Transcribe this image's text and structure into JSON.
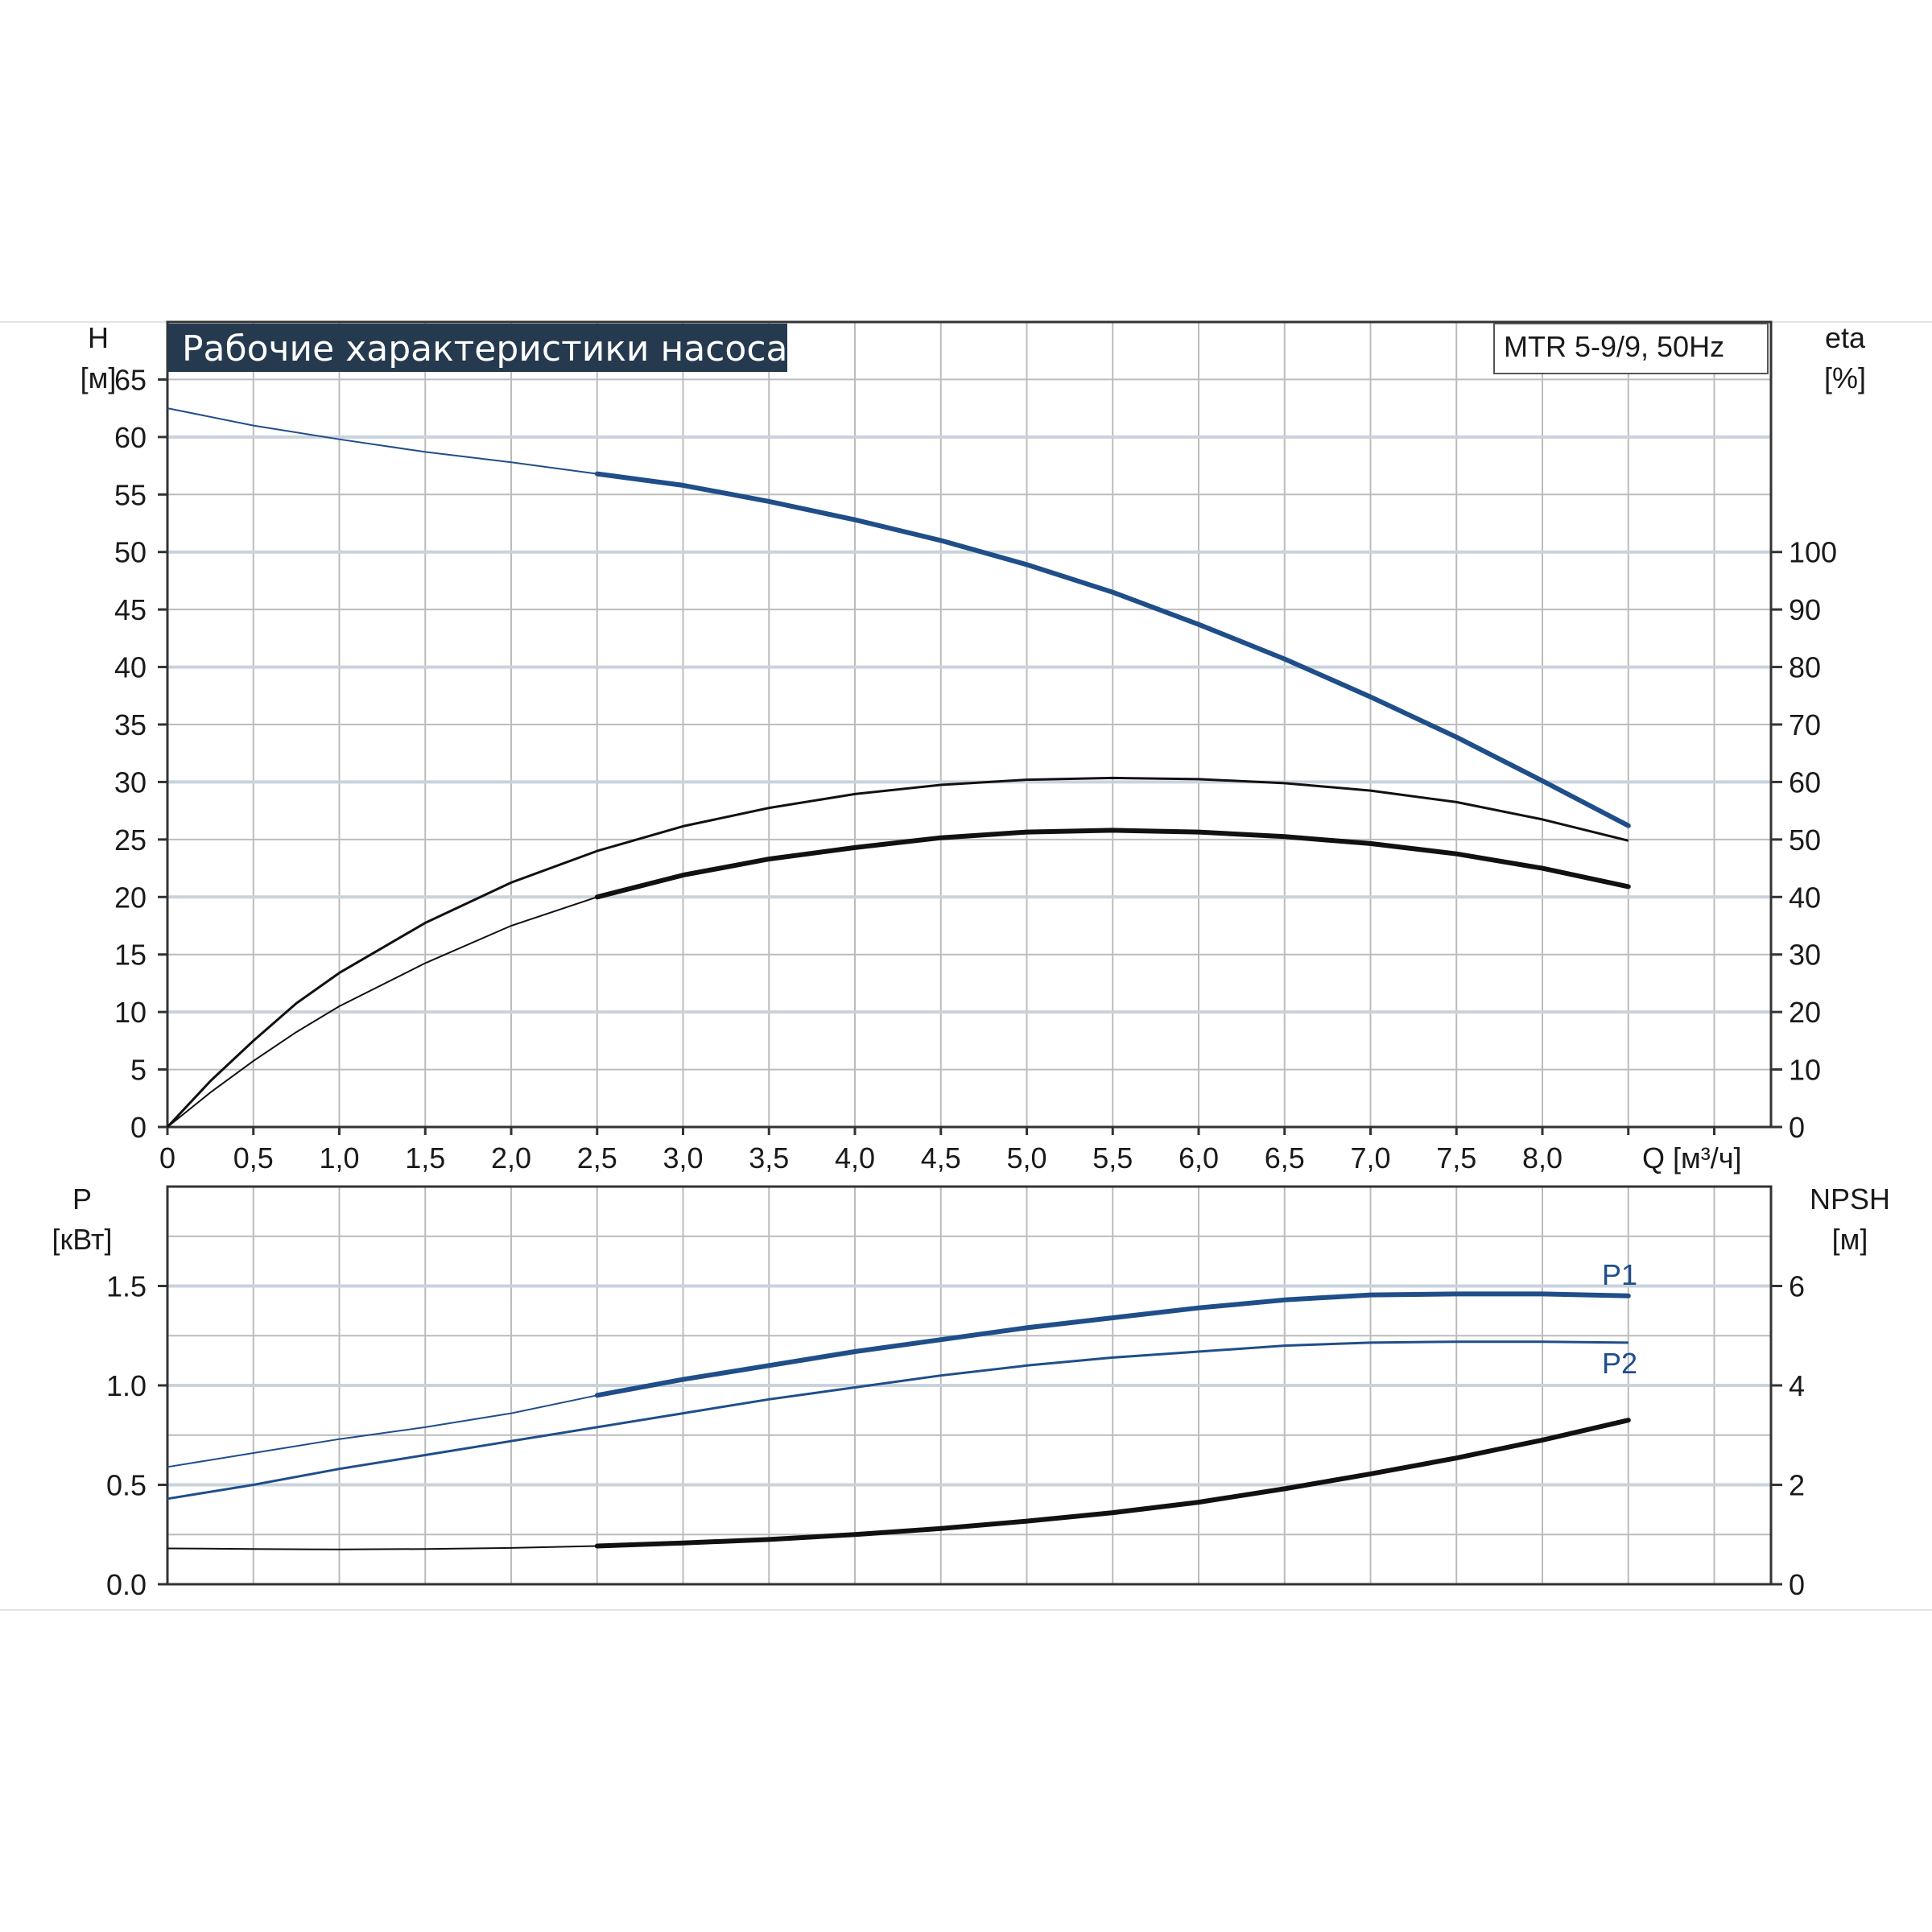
{
  "colors": {
    "blue": "#1f4e89",
    "black": "#111111",
    "title_bg": "#263a4f",
    "grid": "#bcbcbc"
  },
  "title": "Рабочие характеристики насоса",
  "model": "MTR 5-9/9, 50Hz",
  "chart_data": [
    {
      "type": "line",
      "x_axis": {
        "label": "Q [м³/ч]",
        "range": [
          0,
          9.3
        ],
        "ticks": [
          "0",
          "0,5",
          "1,0",
          "1,5",
          "2,0",
          "2,5",
          "3,0",
          "3,5",
          "4,0",
          "4,5",
          "5,0",
          "5,5",
          "6,0",
          "6,5",
          "7,0",
          "7,5",
          "8,0"
        ]
      },
      "y_left": {
        "label_top": "H",
        "label_unit": "[м]",
        "range": [
          0,
          70
        ],
        "ticks": [
          "0",
          "5",
          "10",
          "15",
          "20",
          "25",
          "30",
          "35",
          "40",
          "45",
          "50",
          "55",
          "60",
          "65"
        ]
      },
      "y_right": {
        "label_top": "eta",
        "label_unit": "[%]",
        "range": [
          0,
          140
        ],
        "ticks": [
          "0",
          "10",
          "20",
          "30",
          "40",
          "50",
          "60",
          "70",
          "80",
          "90",
          "100"
        ]
      },
      "grid": true,
      "series": [
        {
          "axis": "left",
          "color": "blue",
          "x": [
            0,
            0.5,
            1.0,
            1.5,
            2.0,
            2.5,
            3.0,
            3.5,
            4.0,
            4.5,
            5.0,
            5.5,
            6.0,
            6.5,
            7.0,
            7.5,
            8.0,
            8.5
          ],
          "y": [
            62.5,
            61.0,
            59.8,
            58.7,
            57.8,
            56.8,
            55.8,
            54.4,
            52.8,
            51.0,
            48.9,
            46.5,
            43.7,
            40.7,
            37.4,
            33.9,
            30.1,
            26.2
          ],
          "bold_from": 2.5
        },
        {
          "axis": "right",
          "color": "black",
          "x": [
            0,
            0.25,
            0.5,
            0.75,
            1.0,
            1.5,
            2.0,
            2.5,
            3.0,
            3.5,
            4.0,
            4.5,
            5.0,
            5.5,
            6.0,
            6.5,
            7.0,
            7.5,
            8.0,
            8.5
          ],
          "y": [
            0,
            8,
            15,
            21.5,
            26.8,
            35.5,
            42.5,
            48,
            52.3,
            55.5,
            57.9,
            59.5,
            60.4,
            60.7,
            60.5,
            59.8,
            58.5,
            56.5,
            53.5,
            49.8
          ],
          "bold_from": null
        },
        {
          "axis": "right",
          "color": "black",
          "x": [
            0,
            0.25,
            0.5,
            0.75,
            1.0,
            1.5,
            2.0,
            2.5,
            3.0,
            3.5,
            4.0,
            4.5,
            5.0,
            5.5,
            6.0,
            6.5,
            7.0,
            7.5,
            8.0,
            8.5
          ],
          "y": [
            0,
            6,
            11.5,
            16.5,
            21,
            28.5,
            35,
            40,
            43.8,
            46.6,
            48.6,
            50.3,
            51.3,
            51.6,
            51.3,
            50.5,
            49.3,
            47.5,
            45.0,
            41.8
          ],
          "bold_from": 2.5
        }
      ]
    },
    {
      "type": "line",
      "x_axis": {
        "label": "",
        "range": [
          0,
          9.3
        ]
      },
      "y_left": {
        "label_top": "P",
        "label_unit": "[кВт]",
        "range": [
          0,
          2.0
        ],
        "ticks": [
          "0.0",
          "0.5",
          "1.0",
          "1.5"
        ]
      },
      "y_right": {
        "label_top": "NPSH",
        "label_unit": "[м]",
        "range": [
          0,
          8
        ],
        "ticks": [
          "0",
          "2",
          "4",
          "6"
        ]
      },
      "grid": true,
      "series": [
        {
          "name": "P1",
          "axis": "left",
          "color": "blue",
          "x": [
            0,
            0.5,
            1.0,
            1.5,
            2.0,
            2.5,
            3.0,
            3.5,
            4.0,
            4.5,
            5.0,
            5.5,
            6.0,
            6.5,
            7.0,
            7.5,
            8.0,
            8.5
          ],
          "y": [
            0.59,
            0.66,
            0.73,
            0.79,
            0.86,
            0.95,
            1.03,
            1.1,
            1.17,
            1.23,
            1.29,
            1.34,
            1.39,
            1.43,
            1.455,
            1.46,
            1.46,
            1.45
          ],
          "bold_from": 2.5
        },
        {
          "name": "P2",
          "axis": "left",
          "color": "blue",
          "x": [
            0,
            0.5,
            1.0,
            1.5,
            2.0,
            2.5,
            3.0,
            3.5,
            4.0,
            4.5,
            5.0,
            5.5,
            6.0,
            6.5,
            7.0,
            7.5,
            8.0,
            8.5
          ],
          "y": [
            0.43,
            0.5,
            0.58,
            0.65,
            0.72,
            0.79,
            0.86,
            0.93,
            0.99,
            1.05,
            1.1,
            1.14,
            1.17,
            1.2,
            1.215,
            1.22,
            1.22,
            1.215
          ],
          "bold_from": null
        },
        {
          "axis": "right",
          "color": "black",
          "x": [
            0,
            0.5,
            1.0,
            1.5,
            2.0,
            2.5,
            3.0,
            3.5,
            4.0,
            4.5,
            5.0,
            5.5,
            6.0,
            6.5,
            7.0,
            7.5,
            8.0,
            8.5
          ],
          "y": [
            0.72,
            0.71,
            0.7,
            0.71,
            0.73,
            0.77,
            0.83,
            0.9,
            1.0,
            1.12,
            1.27,
            1.44,
            1.65,
            1.92,
            2.22,
            2.54,
            2.9,
            3.3
          ],
          "bold_from": 2.5
        }
      ]
    }
  ]
}
